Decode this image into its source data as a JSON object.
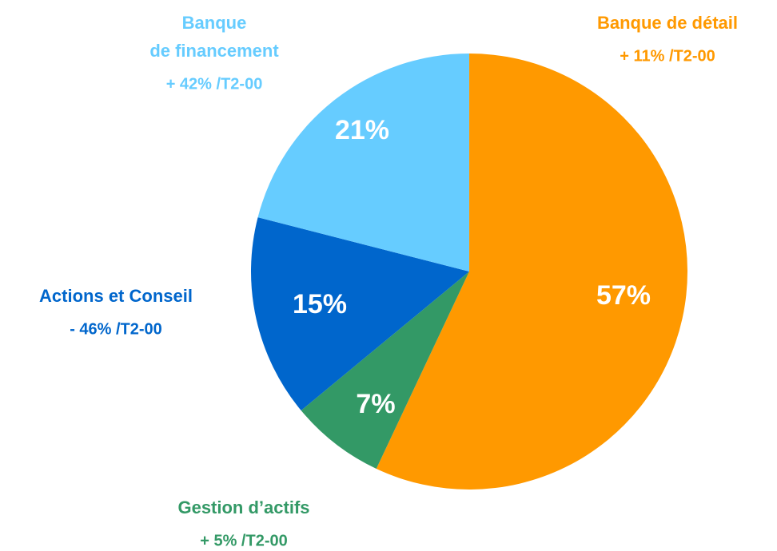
{
  "chart_data": {
    "type": "pie",
    "categories": [
      [
        "Banque de détail"
      ],
      [
        "Gestion d’actifs"
      ],
      [
        "Actions et Conseil"
      ],
      [
        "Banque",
        "de  financement"
      ]
    ],
    "annotations": [
      "+ 11% /T2-00",
      "+ 5% /T2-00",
      "- 46% /T2-00",
      "+ 42% /T2-00"
    ],
    "values": [
      57,
      7,
      15,
      21
    ],
    "value_labels": [
      "57%",
      "7%",
      "15%",
      "21%"
    ],
    "colors": [
      "#ff9900",
      "#339966",
      "#0066cc",
      "#66ccff"
    ]
  }
}
